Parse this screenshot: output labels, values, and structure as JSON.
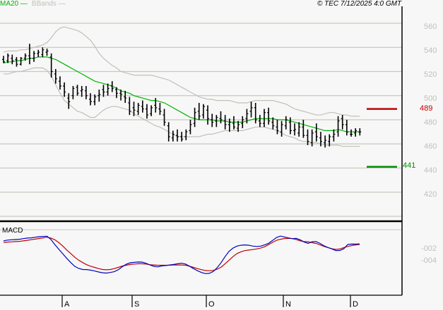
{
  "header": {
    "legend": [
      {
        "label": "MA20",
        "color": "#00b400"
      },
      {
        "label": "BBands",
        "color": "#c0c0b8"
      }
    ],
    "copyright": "© TEC 7/12/2025 4:0 GMT"
  },
  "price_axis": {
    "labels": [
      "560",
      "540",
      "520",
      "500",
      "480",
      "460",
      "440",
      "420"
    ]
  },
  "levels": {
    "resistance": {
      "value": "489",
      "color": "#c00000"
    },
    "support": {
      "value": "441",
      "color": "#009000"
    }
  },
  "macd_panel": {
    "title": "MACD",
    "axis_labels": [
      "-002",
      "-004"
    ]
  },
  "x_axis": {
    "labels": [
      "A",
      "S",
      "O",
      "N",
      "D"
    ]
  },
  "chart_data": [
    {
      "type": "ohlc",
      "title": "Price with MA20 and Bollinger Bands",
      "xlabel": "",
      "ylabel": "",
      "ylim": [
        400,
        565
      ],
      "grid": true,
      "x_ticks": [
        "A",
        "S",
        "O",
        "N",
        "D"
      ],
      "y_ticks": [
        420,
        440,
        460,
        480,
        500,
        520,
        540,
        560
      ],
      "levels": {
        "resistance": 489,
        "support": 441
      },
      "bars": [
        [
          530,
          533,
          527,
          528
        ],
        [
          529,
          535,
          527,
          533
        ],
        [
          531,
          534,
          526,
          529
        ],
        [
          530,
          532,
          524,
          526
        ],
        [
          526,
          532,
          525,
          531
        ],
        [
          531,
          535,
          529,
          533
        ],
        [
          533,
          543,
          526,
          531
        ],
        [
          531,
          537,
          528,
          535
        ],
        [
          535,
          538,
          532,
          536
        ],
        [
          534,
          540,
          532,
          538
        ],
        [
          536,
          539,
          533,
          537
        ],
        [
          532,
          535,
          515,
          520
        ],
        [
          518,
          522,
          510,
          514
        ],
        [
          512,
          516,
          505,
          508
        ],
        [
          508,
          511,
          499,
          503
        ],
        [
          498,
          502,
          489,
          495
        ],
        [
          500,
          508,
          497,
          506
        ],
        [
          507,
          509,
          500,
          502
        ],
        [
          504,
          508,
          499,
          505
        ],
        [
          504,
          508,
          497,
          500
        ],
        [
          497,
          502,
          492,
          495
        ],
        [
          495,
          501,
          492,
          499
        ],
        [
          500,
          505,
          495,
          501
        ],
        [
          505,
          509,
          499,
          503
        ],
        [
          503,
          510,
          500,
          506
        ],
        [
          508,
          512,
          503,
          506
        ],
        [
          505,
          507,
          498,
          502
        ],
        [
          502,
          505,
          496,
          501
        ],
        [
          499,
          504,
          494,
          498
        ],
        [
          494,
          499,
          484,
          487
        ],
        [
          490,
          495,
          483,
          488
        ],
        [
          487,
          494,
          484,
          492
        ],
        [
          491,
          496,
          486,
          489
        ],
        [
          489,
          493,
          481,
          484
        ],
        [
          485,
          492,
          483,
          490
        ],
        [
          492,
          498,
          486,
          490
        ],
        [
          489,
          494,
          484,
          487
        ],
        [
          484,
          489,
          475,
          478
        ],
        [
          475,
          478,
          462,
          466
        ],
        [
          465,
          471,
          462,
          468
        ],
        [
          467,
          472,
          462,
          466
        ],
        [
          466,
          470,
          462,
          464
        ],
        [
          466,
          472,
          463,
          470
        ],
        [
          471,
          480,
          468,
          476
        ],
        [
          477,
          490,
          474,
          486
        ],
        [
          487,
          494,
          480,
          483
        ],
        [
          484,
          493,
          481,
          491
        ],
        [
          488,
          492,
          476,
          481
        ],
        [
          480,
          485,
          474,
          478
        ],
        [
          479,
          484,
          474,
          482
        ],
        [
          481,
          487,
          477,
          480
        ],
        [
          479,
          484,
          472,
          476
        ],
        [
          476,
          481,
          470,
          478
        ],
        [
          477,
          483,
          472,
          474
        ],
        [
          473,
          479,
          470,
          476
        ],
        [
          477,
          483,
          473,
          480
        ],
        [
          481,
          489,
          477,
          485
        ],
        [
          487,
          495,
          482,
          490
        ],
        [
          490,
          494,
          477,
          480
        ],
        [
          479,
          484,
          474,
          477
        ],
        [
          477,
          489,
          474,
          486
        ],
        [
          486,
          490,
          476,
          479
        ],
        [
          478,
          482,
          472,
          475
        ],
        [
          474,
          480,
          468,
          471
        ],
        [
          470,
          479,
          466,
          476
        ],
        [
          475,
          483,
          472,
          480
        ],
        [
          478,
          482,
          468,
          471
        ],
        [
          471,
          477,
          467,
          472
        ],
        [
          469,
          478,
          466,
          474
        ],
        [
          474,
          480,
          465,
          467
        ],
        [
          467,
          472,
          459,
          462
        ],
        [
          461,
          472,
          458,
          469
        ],
        [
          470,
          477,
          462,
          466
        ],
        [
          465,
          470,
          458,
          462
        ],
        [
          461,
          467,
          457,
          463
        ],
        [
          462,
          468,
          458,
          466
        ],
        [
          466,
          472,
          462,
          468
        ],
        [
          470,
          483,
          466,
          479
        ],
        [
          481,
          484,
          472,
          476
        ],
        [
          476,
          480,
          467,
          470
        ],
        [
          468,
          472,
          466,
          468
        ],
        [
          469,
          473,
          466,
          471
        ],
        [
          470,
          473,
          467,
          470
        ]
      ],
      "ma20": [
        527,
        528,
        528,
        529,
        529,
        530,
        531,
        531,
        532,
        532,
        532,
        531,
        530,
        528,
        526,
        524,
        522,
        520,
        518,
        516,
        514,
        512,
        511,
        510,
        509,
        508,
        506,
        504,
        503,
        502,
        500,
        499,
        498,
        497,
        496,
        496,
        495,
        494,
        492,
        490,
        488,
        486,
        484,
        482,
        481,
        480,
        480,
        480,
        480,
        479,
        479,
        479,
        478,
        478,
        478,
        478,
        479,
        480,
        481,
        481,
        481,
        481,
        481,
        480,
        480,
        480,
        479,
        478,
        477,
        476,
        475,
        474,
        473,
        472,
        471,
        471,
        471,
        472,
        471,
        470,
        470,
        470,
        470
      ],
      "bb_upper": [
        536,
        537,
        537,
        537,
        538,
        538,
        539,
        540,
        541,
        542,
        544,
        548,
        553,
        556,
        557,
        556,
        555,
        554,
        552,
        549,
        546,
        541,
        535,
        531,
        528,
        525,
        523,
        520,
        519,
        518,
        517,
        517,
        517,
        517,
        517,
        516,
        515,
        514,
        513,
        511,
        509,
        507,
        505,
        503,
        501,
        499,
        498,
        497,
        497,
        496,
        496,
        496,
        496,
        495,
        494,
        494,
        494,
        495,
        496,
        496,
        496,
        496,
        496,
        495,
        494,
        493,
        491,
        489,
        488,
        487,
        486,
        485,
        484,
        484,
        485,
        486,
        486,
        485,
        484,
        484,
        483,
        483,
        483
      ],
      "bb_lower": [
        518,
        518,
        519,
        520,
        520,
        521,
        522,
        523,
        523,
        523,
        521,
        516,
        509,
        502,
        496,
        493,
        490,
        487,
        486,
        484,
        482,
        482,
        485,
        488,
        490,
        491,
        491,
        490,
        489,
        488,
        485,
        483,
        481,
        479,
        477,
        475,
        474,
        472,
        470,
        468,
        466,
        466,
        466,
        466,
        466,
        466,
        467,
        468,
        468,
        469,
        470,
        471,
        471,
        471,
        471,
        471,
        472,
        473,
        474,
        474,
        474,
        473,
        472,
        471,
        469,
        467,
        466,
        465,
        463,
        462,
        462,
        461,
        461,
        460,
        459,
        459,
        459,
        459,
        458,
        458,
        458,
        458,
        458
      ],
      "x_tick_index": {
        "A": 43,
        "S": 92,
        "O": 144,
        "N": 197,
        "D": 244
      }
    },
    {
      "type": "line",
      "title": "MACD",
      "xlabel": "",
      "ylabel": "",
      "y_ticks": [
        -0.02,
        -0.04
      ],
      "series": [
        {
          "name": "MACD",
          "color": "#0000c0",
          "values": [
            -0.0057,
            -0.0045,
            -0.0039,
            -0.0035,
            -0.0031,
            -0.002,
            -0.001,
            -0.0007,
            0.0004,
            0.0012,
            0.0016,
            0.002,
            -0.0035,
            -0.0122,
            -0.02,
            -0.0275,
            -0.035,
            -0.042,
            -0.0482,
            -0.0518,
            -0.0535,
            -0.0537,
            -0.0546,
            -0.056,
            -0.0576,
            -0.059,
            -0.0595,
            -0.0585,
            -0.0572,
            -0.054,
            -0.0489,
            -0.0447,
            -0.0423,
            -0.0416,
            -0.041,
            -0.0412,
            -0.0432,
            -0.046,
            -0.0482,
            -0.0492,
            -0.0475,
            -0.0469,
            -0.046,
            -0.0451,
            -0.044,
            -0.043,
            -0.0445,
            -0.048,
            -0.052,
            -0.0555,
            -0.0585,
            -0.0603,
            -0.06,
            -0.057,
            -0.0505,
            -0.042,
            -0.032,
            -0.0232,
            -0.0178,
            -0.0145,
            -0.013,
            -0.0125,
            -0.013,
            -0.0145,
            -0.015,
            -0.0145,
            -0.0125,
            -0.0098,
            -0.005,
            0.0,
            0.0022,
            0.0008,
            -0.0008,
            -0.002,
            -0.0015,
            -0.004,
            -0.0078,
            -0.01,
            -0.0072,
            -0.0068,
            -0.01,
            -0.014,
            -0.0168,
            -0.0192,
            -0.022,
            -0.0218,
            -0.019,
            -0.0118,
            -0.011,
            -0.0112,
            -0.0108
          ]
        },
        {
          "name": "Signal",
          "color": "#c00000",
          "values": [
            -0.0082,
            -0.0078,
            -0.0074,
            -0.007,
            -0.0066,
            -0.0058,
            -0.0048,
            -0.0038,
            -0.0028,
            -0.0018,
            -0.0008,
            0.0004,
            -0.0012,
            -0.004,
            -0.0088,
            -0.0145,
            -0.021,
            -0.027,
            -0.033,
            -0.038,
            -0.042,
            -0.0455,
            -0.048,
            -0.05,
            -0.052,
            -0.0535,
            -0.054,
            -0.0535,
            -0.052,
            -0.05,
            -0.0478,
            -0.0465,
            -0.0452,
            -0.0445,
            -0.044,
            -0.044,
            -0.0445,
            -0.0455,
            -0.046,
            -0.0465,
            -0.0465,
            -0.0465,
            -0.0463,
            -0.046,
            -0.046,
            -0.046,
            -0.0465,
            -0.048,
            -0.05,
            -0.052,
            -0.0538,
            -0.0552,
            -0.0556,
            -0.055,
            -0.053,
            -0.0495,
            -0.044,
            -0.038,
            -0.032,
            -0.027,
            -0.024,
            -0.022,
            -0.021,
            -0.0202,
            -0.0192,
            -0.0178,
            -0.0155,
            -0.012,
            -0.0082,
            -0.0048,
            -0.003,
            -0.0018,
            -0.0015,
            -0.002,
            -0.0035,
            -0.0058,
            -0.007,
            -0.0072,
            -0.0088,
            -0.01,
            -0.0125,
            -0.015,
            -0.017,
            -0.019,
            -0.02,
            -0.0192,
            -0.017,
            -0.015,
            -0.0135,
            -0.0125,
            -0.0118
          ]
        }
      ]
    }
  ]
}
